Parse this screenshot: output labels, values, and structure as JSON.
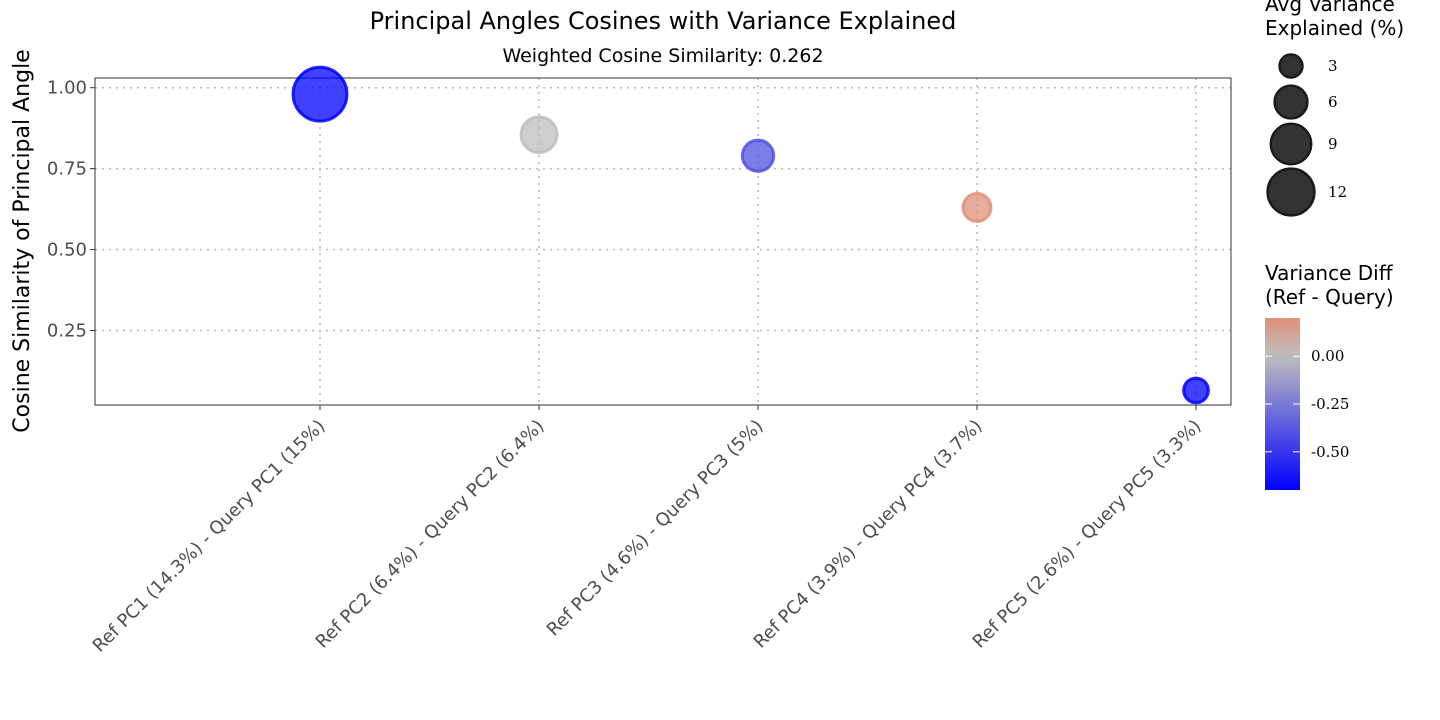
{
  "chart_data": {
    "type": "scatter",
    "title": "Principal Angles Cosines with Variance Explained",
    "subtitle": "Weighted Cosine Similarity: 0.262",
    "xlabel": "",
    "ylabel": "Cosine Similarity of Principal Angle",
    "ylim": [
      0.02,
      1.03
    ],
    "yticks": [
      {
        "value": 0.25,
        "label": "0.25"
      },
      {
        "value": 0.5,
        "label": "0.50"
      },
      {
        "value": 0.75,
        "label": "0.75"
      },
      {
        "value": 1.0,
        "label": "1.00"
      }
    ],
    "grid": true,
    "categories": [
      "Ref PC1 (14.3%) - Query PC1 (15%)",
      "Ref PC2 (6.4%) - Query PC2 (6.4%)",
      "Ref PC3 (4.6%) - Query PC3 (5%)",
      "Ref PC4 (3.9%) - Query PC4 (3.7%)",
      "Ref PC5 (2.6%) - Query PC5 (3.3%)"
    ],
    "points": [
      {
        "category": "Ref PC1 (14.3%) - Query PC1 (15%)",
        "y": 0.98,
        "size": 14.65,
        "color_value": -0.7
      },
      {
        "category": "Ref PC2 (6.4%) - Query PC2 (6.4%)",
        "y": 0.855,
        "size": 6.4,
        "color_value": 0.0
      },
      {
        "category": "Ref PC3 (4.6%) - Query PC3 (5%)",
        "y": 0.79,
        "size": 4.8,
        "color_value": -0.4
      },
      {
        "category": "Ref PC4 (3.9%) - Query PC4 (3.7%)",
        "y": 0.63,
        "size": 3.8,
        "color_value": 0.2
      },
      {
        "category": "Ref PC5 (2.6%) - Query PC5 (3.3%)",
        "y": 0.065,
        "size": 2.95,
        "color_value": -0.7
      }
    ],
    "size_legend": {
      "title_line1": "Avg Variance",
      "title_line2": "Explained (%)",
      "values": [
        3,
        6,
        9,
        12
      ],
      "labels": [
        "3",
        "6",
        "9",
        "12"
      ]
    },
    "color_legend": {
      "title_line1": "Variance Diff",
      "title_line2": "(Ref - Query)",
      "range": [
        -0.7,
        0.2
      ],
      "ticks": [
        {
          "value": 0.0,
          "label": "0.00"
        },
        {
          "value": -0.25,
          "label": "-0.25"
        },
        {
          "value": -0.5,
          "label": "-0.50"
        }
      ],
      "low_color": "#0000FF",
      "mid_color": "#BEBEBE",
      "high_color": "#E0907A",
      "midpoint": 0.0
    },
    "legend_position": "right"
  }
}
